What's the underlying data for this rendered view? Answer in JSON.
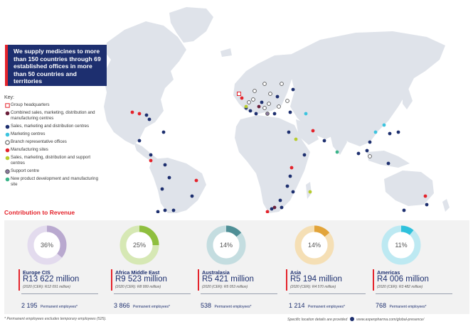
{
  "callout_text": "We supply medicines to more than 150 countries through 69 established offices in more than 50 countries and territories",
  "key": {
    "title": "Key:",
    "items": [
      {
        "label": "Group headquarters",
        "symbol": "square-outline",
        "color": "#e4232b"
      },
      {
        "label": "Combined sales, marketing, distribution and manufacturing centres",
        "symbol": "dot",
        "color": "#6b1f3a"
      },
      {
        "label": "Sales, marketing and distribution centres",
        "symbol": "dot",
        "color": "#1d2f6f"
      },
      {
        "label": "Marketing centres",
        "symbol": "dot",
        "color": "#3cc4df"
      },
      {
        "label": "Branch representative offices",
        "symbol": "ring",
        "color": "#555555"
      },
      {
        "label": "Manufacturing sites",
        "symbol": "dot",
        "color": "#e4232b"
      },
      {
        "label": "Sales, marketing, distribution and support centres",
        "symbol": "dot",
        "color": "#b8cc2e"
      },
      {
        "label": "Support centre",
        "symbol": "ring-filled",
        "color": "#8c7a9e"
      },
      {
        "label": "New product development and manufacturing site",
        "symbol": "dot",
        "color": "#3bb58a"
      }
    ]
  },
  "section_title": "Contribution to Revenue",
  "regions": [
    {
      "name": "Europe CIS",
      "value": "R13 622 million",
      "prior": "(2020 (CER): R12 091 million)",
      "percent_label": "36%",
      "percent": 36,
      "color": "#b9a9cf",
      "color_light": "#e3dbee",
      "employees": "2 195",
      "employees_label": "Permanent employees*"
    },
    {
      "name": "Africa Middle East",
      "value": "R9 523 million",
      "prior": "(2020 (CER): R8 999 million)",
      "percent_label": "25%",
      "percent": 25,
      "color": "#8fbf3f",
      "color_light": "#d6e8b4",
      "employees": "3 866",
      "employees_label": "Permanent employees*"
    },
    {
      "name": "Australasia",
      "value": "R5 421 million",
      "prior": "(2020 (CER): R5 053 million)",
      "percent_label": "14%",
      "percent": 14,
      "color": "#4f8f96",
      "color_light": "#c4dde0",
      "employees": "538",
      "employees_label": "Permanent employees*"
    },
    {
      "name": "Asia",
      "value": "R5 194 million",
      "prior": "(2020 (CER): R4 570 million)",
      "percent_label": "14%",
      "percent": 14,
      "color": "#e2a43a",
      "color_light": "#f5dfb5",
      "employees": "1 214",
      "employees_label": "Permanent employees*"
    },
    {
      "name": "Americas",
      "value": "R4 006 million",
      "prior": "(2020 (CER): R3 482 million)",
      "percent_label": "11%",
      "percent": 11,
      "color": "#2fc1dc",
      "color_light": "#bde9f2",
      "employees": "768",
      "employees_label": "Permanent employees*"
    }
  ],
  "footnote": "* Permanent employees excludes temporary employees (525).",
  "footnote_right_prefix": "Specific location details are provided",
  "footnote_right_url": "www.aspenpharma.com/global-presence/",
  "colors": {
    "navy": "#1d2f6f",
    "red": "#e4232b",
    "land": "#dfe3ea"
  }
}
